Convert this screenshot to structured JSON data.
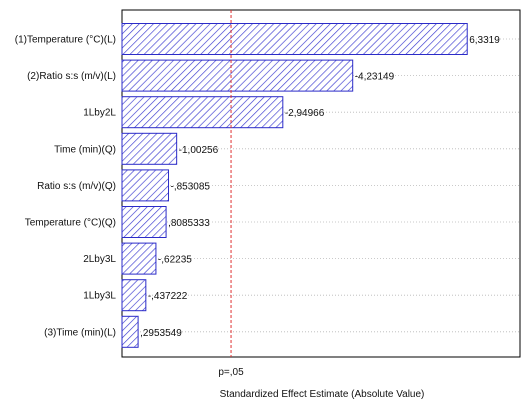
{
  "chart_data": {
    "type": "bar",
    "orientation": "horizontal",
    "xlabel": "Standardized Effect Estimate (Absolute Value)",
    "threshold": {
      "label": "p=,05",
      "value": 2.0
    },
    "xlim": [
      0,
      7.3
    ],
    "grid": "horizontal dotted",
    "categories": [
      "(1)Temperature (°C)(L)",
      "(2)Ratio s:s (m/v)(L)",
      "1Lby2L",
      "Time (min)(Q)",
      "Ratio s:s (m/v)(Q)",
      "Temperature (°C)(Q)",
      "2Lby3L",
      "1Lby3L",
      "(3)Time (min)(L)"
    ],
    "values": [
      6.3319,
      4.23149,
      2.94966,
      1.00256,
      0.853085,
      0.8085333,
      0.62235,
      0.437222,
      0.2953549
    ],
    "value_labels": [
      "6,3319",
      "-4,23149",
      "-2,94966",
      "-1,00256",
      "-,853085",
      ",8085333",
      "-,62235",
      "-,437222",
      ",2953549"
    ],
    "colors": {
      "bar_stroke": "#2b2bc8",
      "hatch": "#3a3ad0",
      "threshold_line": "#e03030"
    }
  }
}
